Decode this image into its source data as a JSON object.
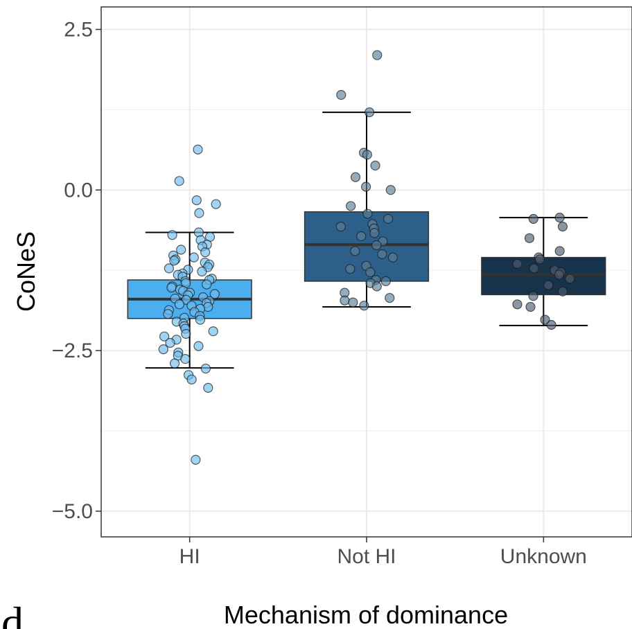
{
  "panel_label": "d",
  "chart_data": {
    "type": "box",
    "xlabel": "Mechanism of dominance",
    "ylabel": "CoNeS",
    "categories": [
      "HI",
      "Not HI",
      "Unknown"
    ],
    "ylim": [
      -5.4,
      2.85
    ],
    "yticks": [
      2.5,
      0.0,
      -2.5,
      -5.0
    ],
    "ytick_labels": [
      "2.5",
      "0.0",
      "−2.5",
      "−5.0"
    ],
    "grid": true,
    "legend": "none",
    "series": [
      {
        "category": "HI",
        "fill": "#4aaeef",
        "point_color": "#6fbcee",
        "box": {
          "q1": -2.0,
          "median": -1.7,
          "q3": -1.4,
          "whisker_low": -2.77,
          "whisker_high": -0.66
        },
        "points": [
          0.63,
          0.14,
          -0.16,
          -0.22,
          -0.36,
          -0.66,
          -0.7,
          -0.73,
          -0.78,
          -0.85,
          -0.88,
          -0.93,
          -0.97,
          -1.02,
          -1.05,
          -1.08,
          -1.1,
          -1.13,
          -1.16,
          -1.2,
          -1.22,
          -1.24,
          -1.27,
          -1.3,
          -1.32,
          -1.35,
          -1.38,
          -1.4,
          -1.42,
          -1.45,
          -1.47,
          -1.5,
          -1.52,
          -1.55,
          -1.57,
          -1.6,
          -1.62,
          -1.64,
          -1.67,
          -1.69,
          -1.71,
          -1.73,
          -1.76,
          -1.78,
          -1.8,
          -1.82,
          -1.85,
          -1.87,
          -1.9,
          -1.93,
          -1.96,
          -1.99,
          -2.02,
          -2.05,
          -2.08,
          -2.12,
          -2.16,
          -2.2,
          -2.24,
          -2.28,
          -2.33,
          -2.38,
          -2.43,
          -2.48,
          -2.53,
          -2.58,
          -2.63,
          -2.7,
          -2.78,
          -2.88,
          -2.95,
          -3.08,
          -4.2
        ]
      },
      {
        "category": "Not HI",
        "fill": "#2c5f89",
        "point_color": "#5c7f9a",
        "box": {
          "q1": -1.42,
          "median": -0.85,
          "q3": -0.34,
          "whisker_low": -1.82,
          "whisker_high": 1.21
        },
        "points": [
          2.1,
          1.48,
          1.21,
          0.58,
          0.55,
          0.38,
          0.2,
          0.05,
          0.0,
          -0.25,
          -0.37,
          -0.45,
          -0.53,
          -0.57,
          -0.6,
          -0.67,
          -0.72,
          -0.8,
          -0.86,
          -0.95,
          -1.0,
          -1.05,
          -1.18,
          -1.23,
          -1.28,
          -1.4,
          -1.42,
          -1.45,
          -1.5,
          -1.6,
          -1.68,
          -1.72,
          -1.75,
          -1.8
        ]
      },
      {
        "category": "Unknown",
        "fill": "#17324b",
        "point_color": "#4d5e70",
        "box": {
          "q1": -1.63,
          "median": -1.32,
          "q3": -1.05,
          "whisker_low": -2.11,
          "whisker_high": -0.43
        },
        "points": [
          -0.43,
          -0.45,
          -0.57,
          -0.75,
          -0.95,
          -1.05,
          -1.08,
          -1.15,
          -1.22,
          -1.25,
          -1.28,
          -1.32,
          -1.38,
          -1.48,
          -1.58,
          -1.65,
          -1.78,
          -1.82,
          -2.02,
          -2.1
        ]
      }
    ]
  }
}
